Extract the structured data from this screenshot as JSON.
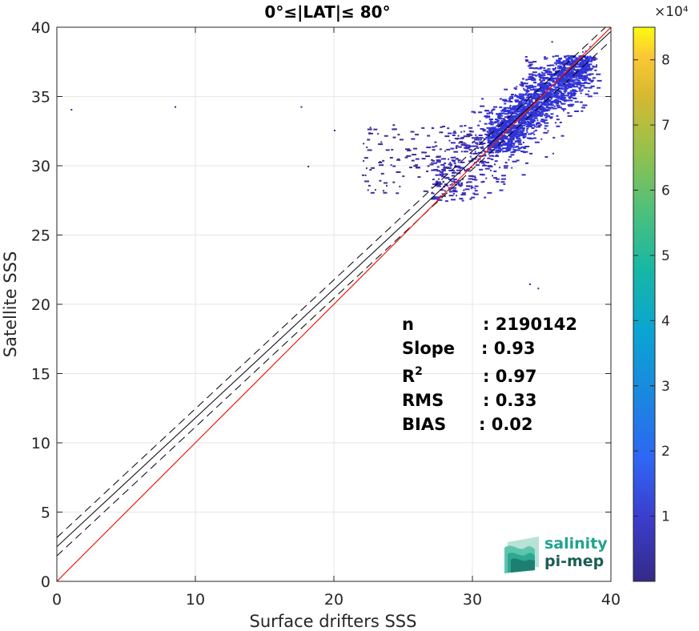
{
  "chart_data": {
    "type": "heatmap",
    "title": "0°≤|LAT|≤ 80°",
    "xlabel": "Surface drifters SSS",
    "ylabel": "Satellite SSS",
    "xlim": [
      0,
      40
    ],
    "ylim": [
      0,
      40
    ],
    "xticks": [
      "0",
      "10",
      "20",
      "30",
      "40"
    ],
    "yticks": [
      "0",
      "5",
      "10",
      "15",
      "20",
      "25",
      "30",
      "35",
      "40"
    ],
    "grid": true,
    "colormap": "parula",
    "colorbar": {
      "range": [
        0,
        85000
      ],
      "ticks": [
        "1",
        "2",
        "3",
        "4",
        "5",
        "6",
        "7",
        "8"
      ],
      "multiplier": "×10⁴"
    },
    "reference_lines": {
      "identity": {
        "slope": 1,
        "intercept": 0,
        "color": "#e8231f"
      },
      "regression": {
        "slope": 0.93,
        "intercept": 2.5,
        "color": "#000000",
        "style": "solid"
      },
      "confidence_band": {
        "offset": 0.66,
        "color": "#000000",
        "style": "dashed"
      }
    },
    "density_clusters": [
      {
        "x": [
          27,
          39
        ],
        "y": [
          27.5,
          38
        ],
        "density": "medium"
      },
      {
        "x": [
          31,
          38.5
        ],
        "y": [
          31,
          38
        ],
        "density": "high"
      },
      {
        "x": [
          22,
          30
        ],
        "y": [
          28,
          33
        ],
        "density": "low"
      }
    ],
    "outliers": [
      {
        "x": 1.0,
        "y": 34.1
      },
      {
        "x": 8.5,
        "y": 34.3
      },
      {
        "x": 17.6,
        "y": 34.3
      },
      {
        "x": 20.0,
        "y": 32.6
      },
      {
        "x": 18.1,
        "y": 30.0
      },
      {
        "x": 34.1,
        "y": 21.5
      },
      {
        "x": 34.7,
        "y": 21.2
      },
      {
        "x": 35.7,
        "y": 39.0
      }
    ],
    "stats": [
      {
        "label": "n",
        "value": ": 2190142"
      },
      {
        "label": "Slope",
        "value": ": 0.93"
      },
      {
        "label": "R",
        "sup": "2",
        "value": ": 0.97"
      },
      {
        "label": "RMS",
        "value": ": 0.33"
      },
      {
        "label": "BIAS",
        "value": ": 0.02"
      }
    ]
  },
  "logo": {
    "line1": "salinity",
    "line2": "pi-mep",
    "accent": "#1fa38e",
    "dark": "#1c5d55"
  }
}
